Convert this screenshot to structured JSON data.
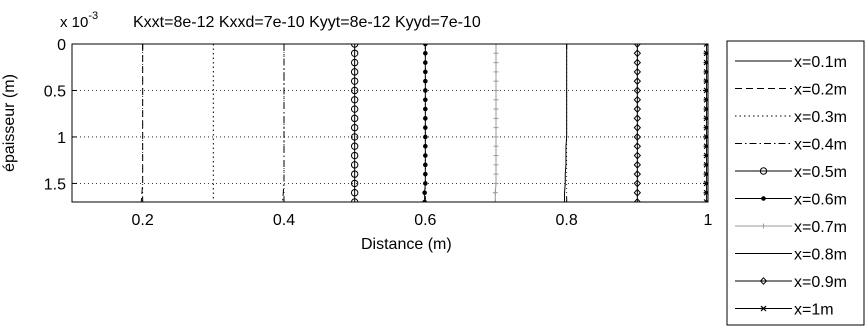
{
  "chart_data": {
    "type": "line",
    "title": "Kxxt=8e-12   Kxxd=7e-10    Kyyt=8e-12   Kyyd=7e-10",
    "xlabel": "Distance (m)",
    "ylabel": "épaisseur (m)",
    "y_multiplier_prefix": "x 10",
    "y_multiplier_exponent": "-3",
    "xlim": [
      0.1,
      1.0
    ],
    "ylim": [
      0,
      1.7
    ],
    "y_reversed": true,
    "grid": true,
    "legend_position": "outside-right",
    "x_ticks": [
      0.2,
      0.4,
      0.6,
      0.8,
      1
    ],
    "x_tick_labels": [
      "0.2",
      "0.4",
      "0.6",
      "0.8",
      "1"
    ],
    "y_ticks": [
      0,
      0.5,
      1,
      1.5
    ],
    "y_tick_labels": [
      "0",
      "0.5",
      "1",
      "1.5"
    ],
    "y": [
      0,
      0.1,
      0.2,
      0.3,
      0.4,
      0.5,
      0.6,
      0.7,
      0.8,
      0.9,
      1.0,
      1.1,
      1.2,
      1.3,
      1.4,
      1.5,
      1.6,
      1.7
    ],
    "series": [
      {
        "name": "x=0.1m",
        "style": "solid",
        "marker": "none",
        "x": [
          0.1,
          0.1,
          0.1,
          0.1,
          0.1,
          0.1,
          0.1,
          0.1,
          0.1,
          0.1,
          0.1,
          0.1,
          0.1,
          0.099,
          0.099,
          0.099,
          0.098,
          0.097
        ]
      },
      {
        "name": "x=0.2m",
        "style": "dashed",
        "marker": "none",
        "x": [
          0.2,
          0.2,
          0.2,
          0.2,
          0.2,
          0.2,
          0.2,
          0.2,
          0.2,
          0.2,
          0.2,
          0.2,
          0.2,
          0.2,
          0.2,
          0.2,
          0.199,
          0.198
        ]
      },
      {
        "name": "x=0.3m",
        "style": "dotted",
        "marker": "none",
        "x": [
          0.3,
          0.3,
          0.3,
          0.3,
          0.3,
          0.3,
          0.3,
          0.3,
          0.3,
          0.3,
          0.3,
          0.3,
          0.3,
          0.3,
          0.3,
          0.3,
          0.3,
          0.3
        ]
      },
      {
        "name": "x=0.4m",
        "style": "dashdot",
        "marker": "none",
        "x": [
          0.4,
          0.4,
          0.4,
          0.4,
          0.4,
          0.4,
          0.4,
          0.4,
          0.4,
          0.4,
          0.4,
          0.4,
          0.4,
          0.4,
          0.4,
          0.4,
          0.399,
          0.398
        ]
      },
      {
        "name": "x=0.5m",
        "style": "solid",
        "marker": "circle",
        "x": [
          0.5,
          0.5,
          0.5,
          0.5,
          0.5,
          0.5,
          0.5,
          0.5,
          0.5,
          0.5,
          0.5,
          0.5,
          0.5,
          0.5,
          0.5,
          0.5,
          0.5,
          0.5
        ]
      },
      {
        "name": "x=0.6m",
        "style": "solid",
        "marker": "point",
        "x": [
          0.6,
          0.6,
          0.6,
          0.6,
          0.6,
          0.6,
          0.6,
          0.6,
          0.6,
          0.6,
          0.6,
          0.6,
          0.6,
          0.6,
          0.6,
          0.6,
          0.599,
          0.599
        ]
      },
      {
        "name": "x=0.7m",
        "style": "solid",
        "marker": "cross",
        "color": "#9a9a9a",
        "x": [
          0.7,
          0.7,
          0.7,
          0.7,
          0.7,
          0.7,
          0.7,
          0.7,
          0.7,
          0.7,
          0.7,
          0.7,
          0.7,
          0.7,
          0.7,
          0.7,
          0.699,
          0.699
        ]
      },
      {
        "name": "x=0.8m",
        "style": "solid",
        "marker": "none",
        "x": [
          0.8,
          0.8,
          0.8,
          0.8,
          0.8,
          0.8,
          0.8,
          0.8,
          0.8,
          0.8,
          0.8,
          0.799,
          0.799,
          0.799,
          0.798,
          0.798,
          0.797,
          0.797
        ]
      },
      {
        "name": "x=0.9m",
        "style": "solid",
        "marker": "diamond",
        "x": [
          0.9,
          0.9,
          0.9,
          0.9,
          0.9,
          0.9,
          0.9,
          0.9,
          0.9,
          0.9,
          0.9,
          0.9,
          0.9,
          0.9,
          0.9,
          0.9,
          0.9,
          0.9
        ]
      },
      {
        "name": "x=1m",
        "style": "solid",
        "marker": "star",
        "x": [
          0.998,
          0.998,
          0.998,
          0.998,
          0.998,
          0.998,
          0.998,
          0.998,
          0.998,
          0.998,
          0.998,
          0.998,
          0.998,
          0.998,
          0.998,
          0.998,
          0.998,
          0.998
        ]
      }
    ]
  }
}
